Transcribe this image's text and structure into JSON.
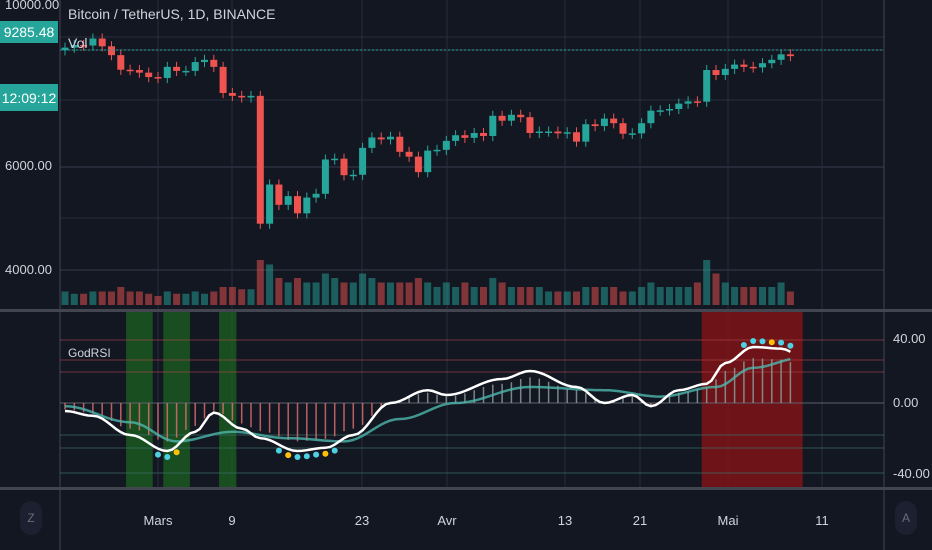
{
  "header": {
    "title": "Bitcoin / TetherUS, 1D, BINANCE",
    "volume_label": "Vol"
  },
  "price_axis": {
    "labels": [
      "10000.00",
      "6000.00",
      "4000.00"
    ],
    "last_price": "9285.48",
    "countdown": "12:09:12"
  },
  "indicator": {
    "name": "GodRSI",
    "axis_labels": [
      "40.00",
      "0.00",
      "-40.00"
    ]
  },
  "time_axis": {
    "labels": [
      "Mars",
      "9",
      "23",
      "Avr",
      "13",
      "21",
      "Mai",
      "11"
    ]
  },
  "buttons": {
    "left": "Z",
    "right": "A"
  },
  "colors": {
    "up": "#26a69a",
    "down": "#ef5350",
    "bg": "#131722",
    "grid": "#363c4e",
    "rsi": "#ffffff",
    "signal": "#4db6ac"
  },
  "chart_data": {
    "type": "candlestick",
    "title": "Bitcoin / TetherUS, 1D, BINANCE",
    "start_date": "2020-02-20",
    "yscale": "log",
    "closes": [
      9600,
      9700,
      9680,
      9950,
      9650,
      9320,
      8800,
      8790,
      8700,
      8550,
      8520,
      8900,
      8760,
      8760,
      9070,
      9150,
      8900,
      8030,
      7940,
      7890,
      7940,
      4800,
      5600,
      5170,
      5350,
      5000,
      5320,
      5400,
      6180,
      6200,
      5810,
      5820,
      6470,
      6740,
      6690,
      6760,
      6370,
      6250,
      5880,
      6400,
      6420,
      6650,
      6800,
      6730,
      6860,
      6780,
      7340,
      7200,
      7370,
      7300,
      6860,
      6900,
      6900,
      6850,
      6880,
      6630,
      7100,
      7050,
      7260,
      7130,
      6840,
      6850,
      7130,
      7490,
      7500,
      7540,
      7700,
      7770,
      7760,
      8790,
      8620,
      8830,
      8980,
      8900,
      8880,
      9030,
      9150,
      9350,
      9285
    ],
    "volume": [
      3,
      2.5,
      2.5,
      3,
      3,
      3,
      4,
      3,
      3,
      2.5,
      2,
      3,
      2.5,
      2.5,
      3,
      2.5,
      3,
      4,
      4,
      3.5,
      3.5,
      10,
      9,
      6,
      5,
      6,
      5,
      5,
      7,
      6,
      5,
      5,
      7,
      6,
      5,
      5,
      5,
      5,
      6,
      5,
      4,
      5,
      4,
      5,
      4,
      4,
      6,
      5,
      4,
      4,
      4,
      4,
      3,
      3,
      3,
      3,
      4,
      4,
      4,
      4,
      3,
      3,
      4,
      5,
      4,
      4,
      4,
      4,
      5,
      10,
      7,
      5,
      4,
      4,
      4,
      4,
      4,
      5,
      3
    ],
    "rsi_keypoints": [
      [
        0,
        -5
      ],
      [
        3,
        -8
      ],
      [
        7,
        -20
      ],
      [
        11,
        -30
      ],
      [
        14,
        -18
      ],
      [
        16,
        -6
      ],
      [
        19,
        -16
      ],
      [
        21,
        -22
      ],
      [
        25,
        -30
      ],
      [
        28,
        -28
      ],
      [
        31,
        -20
      ],
      [
        35,
        0
      ],
      [
        39,
        8
      ],
      [
        41,
        5
      ],
      [
        47,
        15
      ],
      [
        50,
        20
      ],
      [
        55,
        10
      ],
      [
        58,
        0
      ],
      [
        61,
        5
      ],
      [
        63,
        -2
      ],
      [
        66,
        8
      ],
      [
        69,
        12
      ],
      [
        71,
        25
      ],
      [
        74,
        35
      ],
      [
        77,
        34
      ],
      [
        79,
        30
      ]
    ],
    "signal_keypoints": [
      [
        0,
        -2
      ],
      [
        7,
        -12
      ],
      [
        12,
        -24
      ],
      [
        18,
        -18
      ],
      [
        24,
        -22
      ],
      [
        30,
        -24
      ],
      [
        36,
        -10
      ],
      [
        42,
        0
      ],
      [
        50,
        10
      ],
      [
        58,
        8
      ],
      [
        64,
        4
      ],
      [
        70,
        10
      ],
      [
        74,
        22
      ],
      [
        79,
        28
      ]
    ],
    "rsi_ylim": [
      -50,
      50
    ],
    "green_zones": [
      [
        7,
        9
      ],
      [
        11,
        13
      ],
      [
        17,
        18
      ]
    ],
    "red_zone": [
      69,
      79
    ]
  }
}
